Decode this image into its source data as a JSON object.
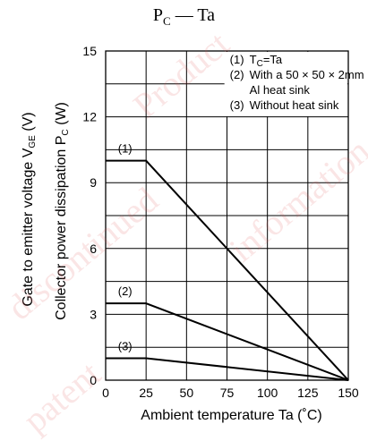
{
  "title": "P_C — Ta",
  "title_main": "P",
  "title_sub": "C",
  "title_rest": " — Ta",
  "chart_data": {
    "type": "line",
    "xlabel": "Ambient temperature  Ta  (˚C)",
    "ylabel_outer": "Gate to emitter voltage  V",
    "ylabel_outer_sub": "GE",
    "ylabel_outer_unit": "  (V)",
    "ylabel_inner": "Collector power dissipation  P",
    "ylabel_inner_sub": "C",
    "ylabel_inner_unit": "  (W)",
    "xlim": [
      0,
      150
    ],
    "ylim": [
      0,
      15
    ],
    "x_ticks": [
      0,
      25,
      50,
      75,
      100,
      125,
      150
    ],
    "y_ticks": [
      0,
      3,
      6,
      9,
      12,
      15
    ],
    "grid": true,
    "series": [
      {
        "name": "(1)",
        "x": [
          0,
          25,
          150
        ],
        "y": [
          10,
          10,
          0
        ]
      },
      {
        "name": "(2)",
        "x": [
          0,
          25,
          150
        ],
        "y": [
          3.5,
          3.5,
          0
        ]
      },
      {
        "name": "(3)",
        "x": [
          0,
          25,
          150
        ],
        "y": [
          1,
          1,
          0
        ]
      }
    ],
    "legend": {
      "placement": "top-right",
      "lines": [
        {
          "num": "(1)",
          "text": "T",
          "sub": "C",
          "rest": "=Ta"
        },
        {
          "num": "(2)",
          "text": "With a 50 × 50 × 2mm",
          "sub": "",
          "rest": ""
        },
        {
          "num": "",
          "text": "Al heat sink",
          "sub": "",
          "rest": ""
        },
        {
          "num": "(3)",
          "text": "Without heat sink",
          "sub": "",
          "rest": ""
        }
      ]
    }
  },
  "watermark": [
    "Product",
    "discontinued",
    "information",
    "patent"
  ],
  "colors": {
    "axis": "#000000",
    "grid": "#000000",
    "line": "#000000",
    "watermark": "#e05050"
  }
}
